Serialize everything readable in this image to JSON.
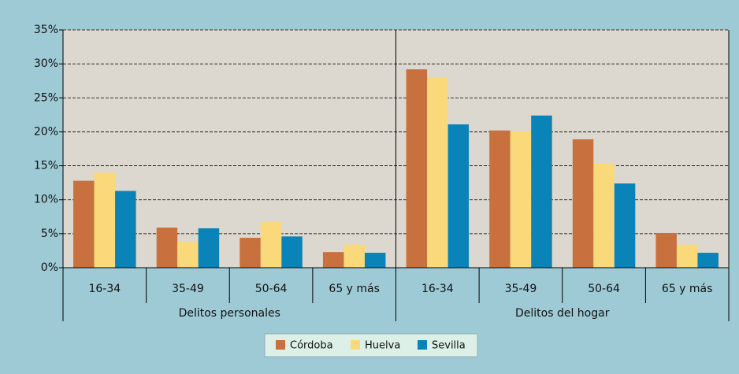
{
  "chart_data": {
    "type": "bar",
    "groups": [
      "Delitos personales",
      "Delitos del hogar"
    ],
    "categories": [
      "16-34",
      "35-49",
      "50-64",
      "65 y más",
      "16-34",
      "35-49",
      "50-64",
      "65 y más"
    ],
    "series": [
      {
        "name": "Córdoba",
        "color": "#c8703e",
        "values": [
          12.8,
          5.9,
          4.4,
          2.3,
          29.2,
          20.2,
          18.9,
          5.1
        ]
      },
      {
        "name": "Huelva",
        "color": "#fad97a",
        "values": [
          14.0,
          3.8,
          6.7,
          3.4,
          28.0,
          20.1,
          15.3,
          3.4
        ]
      },
      {
        "name": "Sevilla",
        "color": "#0a83b8",
        "values": [
          11.3,
          5.8,
          4.6,
          2.2,
          21.1,
          22.4,
          12.4,
          2.2
        ]
      }
    ],
    "ylim": [
      0,
      35
    ],
    "yticks": [
      {
        "value": 0,
        "label": "0%"
      },
      {
        "value": 5,
        "label": "5%"
      },
      {
        "value": 10,
        "label": "10%"
      },
      {
        "value": 15,
        "label": "15%"
      },
      {
        "value": 20,
        "label": "20%"
      },
      {
        "value": 25,
        "label": "25%"
      },
      {
        "value": 30,
        "label": "30%"
      },
      {
        "value": 35,
        "label": "35%"
      }
    ],
    "grid": true,
    "legend": "bottom"
  }
}
